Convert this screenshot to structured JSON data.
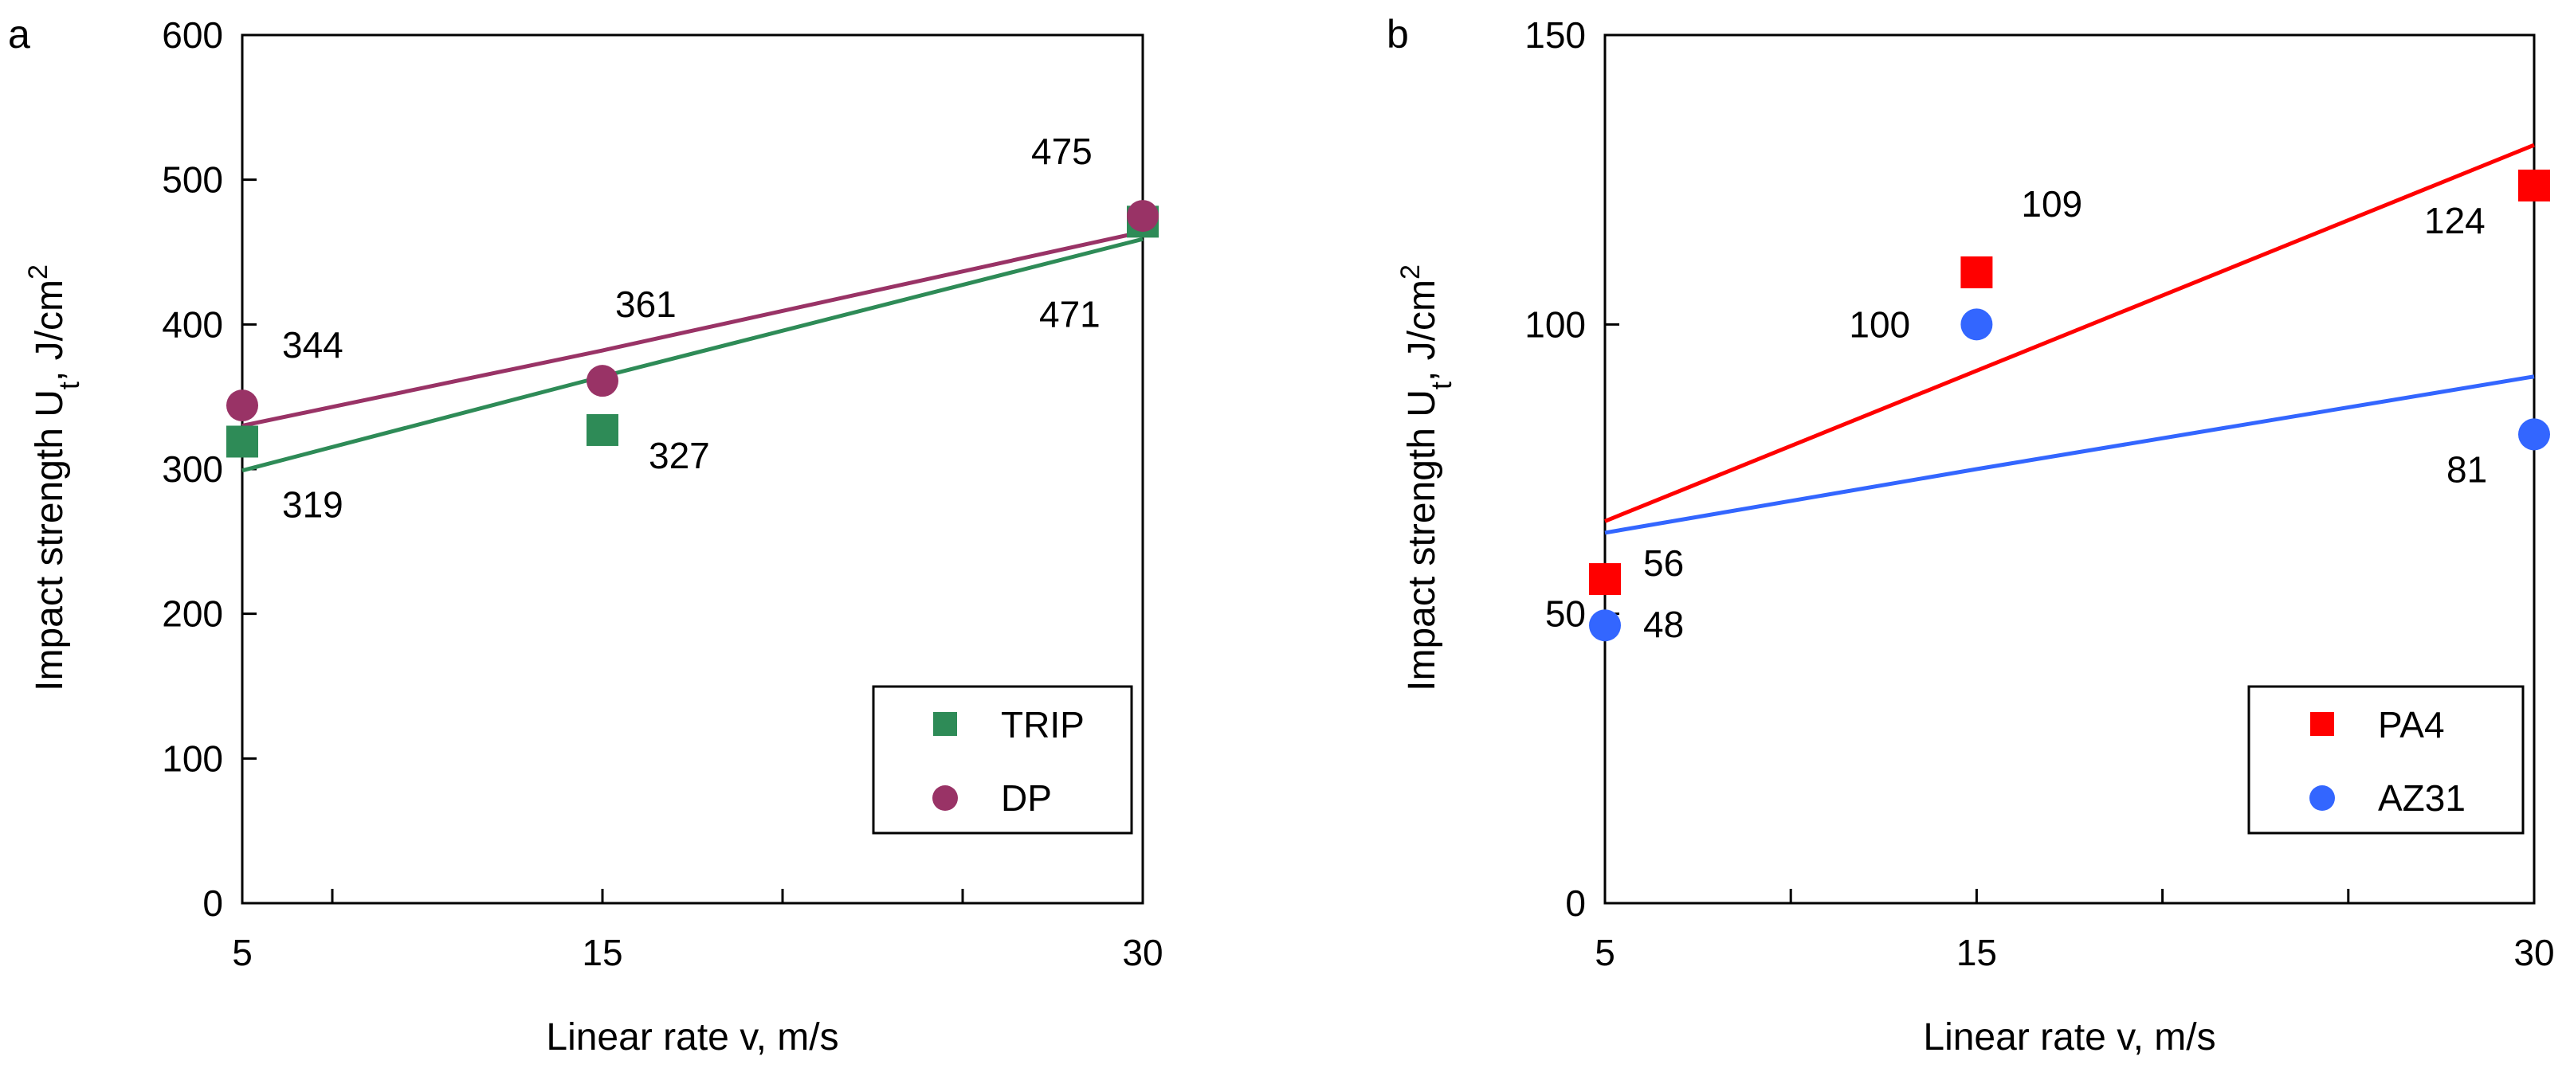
{
  "chart_data": [
    {
      "panel_label": "a",
      "type": "scatter",
      "x": [
        5,
        15,
        30
      ],
      "xticks": [
        "5",
        "15",
        "30"
      ],
      "xlim": [
        5,
        30
      ],
      "ylim": [
        0,
        600
      ],
      "yticks": [
        "0",
        "100",
        "200",
        "300",
        "400",
        "500",
        "600"
      ],
      "xlabel": "Linear rate  v,  m/s",
      "ylabel_main": "Impact strength  U",
      "ylabel_sub": "t",
      "ylabel_unit": ",  J/cm",
      "ylabel_sup": "2",
      "legend_position": "bottom-right",
      "series": [
        {
          "name": "TRIP",
          "marker": "square",
          "color": "#2e8b57",
          "values": [
            319,
            327,
            471
          ],
          "labels": [
            "319",
            "327",
            "471"
          ],
          "trend": [
            299,
            364,
            459
          ]
        },
        {
          "name": "DP",
          "marker": "circle",
          "color": "#993366",
          "values": [
            344,
            361,
            475
          ],
          "labels": [
            "344",
            "361",
            "475"
          ],
          "trend": [
            330,
            382,
            464
          ]
        }
      ]
    },
    {
      "panel_label": "b",
      "type": "scatter",
      "x": [
        5,
        15,
        30
      ],
      "xticks": [
        "5",
        "15",
        "30"
      ],
      "xlim": [
        5,
        30
      ],
      "ylim": [
        0,
        150
      ],
      "yticks": [
        "0",
        "50",
        "100",
        "150"
      ],
      "xlabel": "Linear rate  v,  m/s",
      "ylabel_main": "Impact strength  U",
      "ylabel_sub": "t",
      "ylabel_unit": ",  J/cm",
      "ylabel_sup": "2",
      "legend_position": "bottom-right",
      "series": [
        {
          "name": "PA4",
          "marker": "square",
          "color": "#ff0000",
          "values": [
            56,
            109,
            124
          ],
          "labels": [
            "56",
            "109",
            "124"
          ],
          "trend": [
            66,
            92,
            131
          ]
        },
        {
          "name": "AZ31",
          "marker": "circle",
          "color": "#3366ff",
          "values": [
            48,
            100,
            81
          ],
          "labels": [
            "48",
            "100",
            "81"
          ],
          "trend": [
            64,
            75,
            91
          ]
        }
      ]
    }
  ]
}
